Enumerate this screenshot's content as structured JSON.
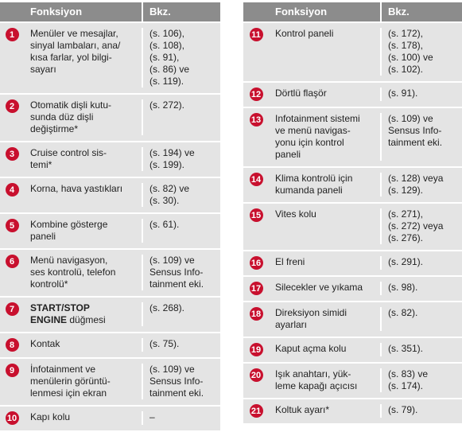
{
  "tables": [
    {
      "header": {
        "function": "Fonksiyon",
        "ref": "Bkz."
      },
      "rows": [
        {
          "num": 1,
          "function": [
            "Menüler ve mesajlar,",
            "sinyal lambaları, ana/",
            "kısa farlar, yol bilgi-",
            "sayarı"
          ],
          "ref": [
            "(s. 106),",
            "(s. 108),",
            "(s. 91),",
            "(s. 86) ve",
            "(s. 119)."
          ]
        },
        {
          "num": 2,
          "function": [
            "Otomatik dişli kutu-",
            "sunda düz dişli",
            "değiştirme*"
          ],
          "ref": [
            "(s. 272)."
          ]
        },
        {
          "num": 3,
          "function": [
            "Cruise control sis-",
            "temi*"
          ],
          "ref": [
            "(s. 194) ve",
            "(s. 199)."
          ]
        },
        {
          "num": 4,
          "function": [
            "Korna, hava yastıkları"
          ],
          "ref": [
            "(s. 82) ve",
            "(s. 30)."
          ]
        },
        {
          "num": 5,
          "function": [
            "Kombine gösterge",
            "paneli"
          ],
          "ref": [
            "(s. 61)."
          ]
        },
        {
          "num": 6,
          "function": [
            "Menü navigasyon,",
            "ses kontrolü, telefon",
            "kontrolü*"
          ],
          "ref": [
            "(s. 109) ve",
            "Sensus Info-",
            "tainment eki."
          ]
        },
        {
          "num": 7,
          "function_bold": [
            "START/STOP",
            "ENGINE"
          ],
          "function": [
            "düğmesi"
          ],
          "ref": [
            "(s. 268)."
          ]
        },
        {
          "num": 8,
          "function": [
            "Kontak"
          ],
          "ref": [
            "(s. 75)."
          ]
        },
        {
          "num": 9,
          "function": [
            "İnfotainment ve",
            "menülerin görüntü-",
            "lenmesi için ekran"
          ],
          "ref": [
            "(s. 109) ve",
            "Sensus Info-",
            "tainment eki."
          ]
        },
        {
          "num": 10,
          "function": [
            "Kapı kolu"
          ],
          "ref": [
            "–"
          ]
        }
      ]
    },
    {
      "header": {
        "function": "Fonksiyon",
        "ref": "Bkz."
      },
      "rows": [
        {
          "num": 11,
          "function": [
            "Kontrol paneli"
          ],
          "ref": [
            "(s. 172),",
            "(s. 178),",
            "(s. 100) ve",
            "(s. 102)."
          ]
        },
        {
          "num": 12,
          "function": [
            "Dörtlü flaşör"
          ],
          "ref": [
            "(s. 91)."
          ]
        },
        {
          "num": 13,
          "function": [
            "Infotainment sistemi",
            "ve menü navigas-",
            "yonu için kontrol",
            "paneli"
          ],
          "ref": [
            "(s. 109) ve",
            "Sensus Info-",
            "tainment eki."
          ]
        },
        {
          "num": 14,
          "function": [
            "Klima kontrolü için",
            "kumanda paneli"
          ],
          "ref": [
            "(s. 128) veya",
            "(s. 129)."
          ]
        },
        {
          "num": 15,
          "function": [
            "Vites kolu"
          ],
          "ref": [
            "(s. 271),",
            "(s. 272) veya",
            "(s. 276)."
          ]
        },
        {
          "num": 16,
          "function": [
            "El freni"
          ],
          "ref": [
            "(s. 291)."
          ]
        },
        {
          "num": 17,
          "function": [
            "Silecekler ve yıkama"
          ],
          "ref": [
            "(s. 98)."
          ]
        },
        {
          "num": 18,
          "function": [
            "Direksiyon simidi",
            "ayarları"
          ],
          "ref": [
            "(s. 82)."
          ]
        },
        {
          "num": 19,
          "function": [
            "Kaput açma kolu"
          ],
          "ref": [
            "(s. 351)."
          ]
        },
        {
          "num": 20,
          "function": [
            "Işık anahtarı, yük-",
            "leme kapağı açıcısı"
          ],
          "ref": [
            "(s. 83) ve",
            "(s. 174)."
          ]
        },
        {
          "num": 21,
          "function": [
            "Koltuk ayarı*"
          ],
          "ref": [
            "(s. 79)."
          ]
        }
      ]
    }
  ]
}
